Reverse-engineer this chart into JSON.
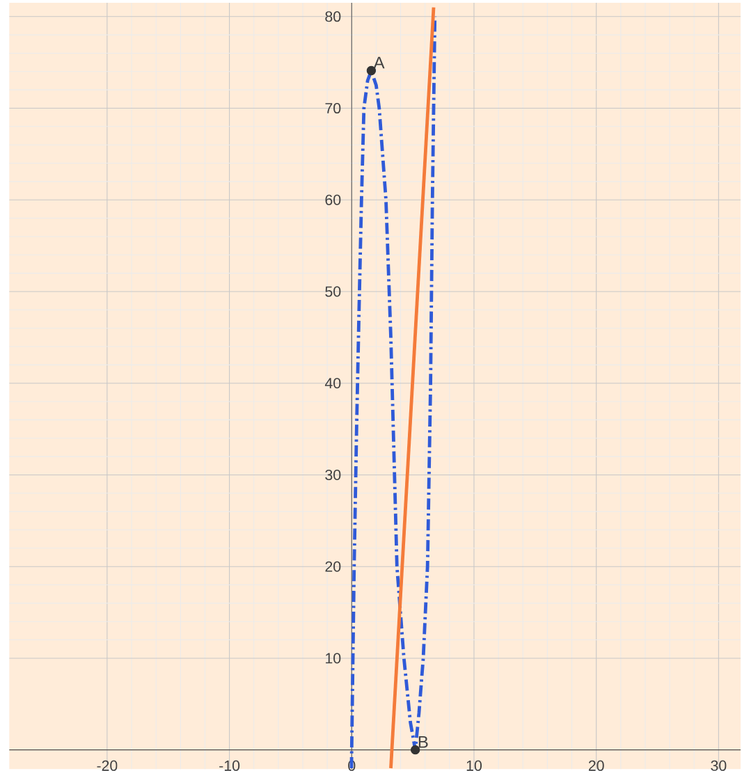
{
  "chart_data": {
    "type": "line",
    "xlim": [
      -28,
      31.8
    ],
    "ylim": [
      -2.1,
      81.5
    ],
    "xticks": [
      -20,
      -10,
      0,
      10,
      20,
      30
    ],
    "yticks": [
      10,
      20,
      30,
      40,
      50,
      60,
      70,
      80
    ],
    "grid": true,
    "series": [
      {
        "color": "#2f5ad8",
        "line_style": "dashed",
        "marker": "none",
        "x": [
          -0.02,
          0,
          0.2,
          0.4,
          0.6,
          0.8,
          1.0,
          1.3,
          1.6,
          2.0,
          2.25,
          2.8,
          3.2,
          3.7,
          4.27,
          4.8,
          5.2,
          5.5,
          5.85,
          6.2,
          6.45,
          6.6,
          6.8
        ],
        "values": [
          -2,
          0,
          20,
          35,
          48,
          60,
          70,
          73,
          74.1,
          72.5,
          70,
          60,
          45,
          20,
          10,
          3,
          0,
          4,
          10,
          20,
          40,
          60,
          80
        ]
      },
      {
        "color": "#f47b3a",
        "line_style": "solid",
        "marker": "none",
        "x": [
          3.2,
          6.7
        ],
        "values": [
          -2,
          81
        ]
      },
      {
        "type": "scatter",
        "color": "#333333",
        "marker": "circle",
        "x": [
          1.6,
          5.2
        ],
        "values": [
          74.1,
          0
        ]
      }
    ],
    "annotations": [
      {
        "text": "A",
        "x": 1.6,
        "y": 74.1
      },
      {
        "text": "B",
        "x": 5.2,
        "y": 0
      }
    ]
  }
}
